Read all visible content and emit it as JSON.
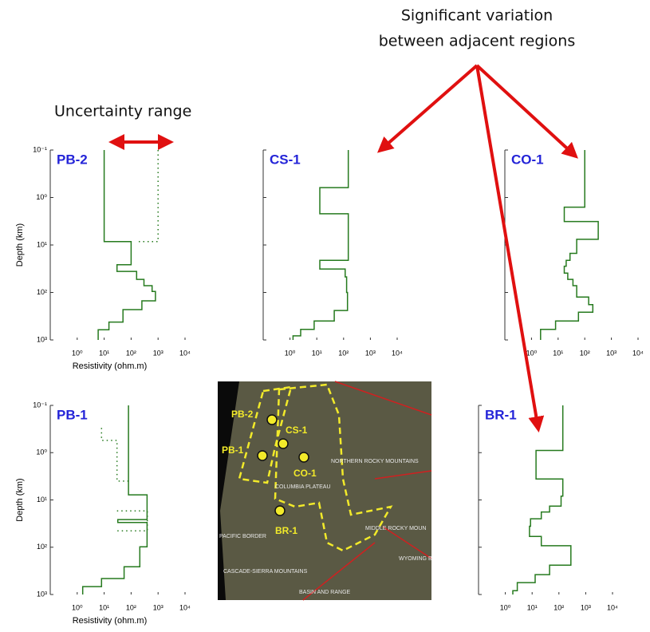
{
  "annotations": {
    "uncertainty": "Uncertainty range",
    "variation": [
      "Significant variation",
      "between adjacent regions"
    ]
  },
  "map": {
    "labels": [
      "PB-2",
      "CS-1",
      "PB-1",
      "CO-1",
      "BR-1",
      "NORTHERN ROCKY MOUNTAINS",
      "COLUMBIA PLATEAU",
      "PACIFIC BORDER",
      "MIDDLE ROCKY MOUN",
      "WYOMING B",
      "CASCADE-SIERRA MOUNTAINS",
      "BASIN AND RANGE"
    ]
  },
  "chart_data": [
    {
      "type": "line",
      "title": "PB-2",
      "xlabel": "Resistivity (ohm.m)",
      "ylabel": "Depth (km)",
      "xscale": "log",
      "yscale": "log",
      "yinvert": true,
      "ytick_labels": true,
      "xlim": [
        0.1,
        10000
      ],
      "ylim": [
        0.1,
        1000
      ],
      "xticks": [
        {
          "value": 1,
          "label": "10⁰"
        },
        {
          "value": 10,
          "label": "10¹"
        },
        {
          "value": 100,
          "label": "10²"
        },
        {
          "value": 1000,
          "label": "10³"
        },
        {
          "value": 10000,
          "label": "10⁴"
        }
      ],
      "yticks": [
        {
          "value": 0.1,
          "label": "10⁻¹"
        },
        {
          "value": 1,
          "label": "10⁰"
        },
        {
          "value": 10,
          "label": "10¹"
        },
        {
          "value": 100,
          "label": "10²"
        },
        {
          "value": 1000,
          "label": "10³"
        }
      ],
      "series": [
        {
          "color": "#267a1e",
          "style": "solid",
          "x": [
            10,
            10,
            100,
            100,
            30,
            30,
            160,
            160,
            300,
            300,
            600,
            600,
            800,
            800,
            250,
            250,
            50,
            50,
            15,
            15,
            6,
            6
          ],
          "values": [
            0.1,
            8.5,
            8.5,
            26,
            26,
            36,
            36,
            53,
            53,
            72,
            72,
            95,
            95,
            150,
            150,
            230,
            230,
            420,
            420,
            610,
            610,
            1000
          ]
        },
        {
          "color": "#267a1e",
          "style": "dotted",
          "x": [
            1000,
            1000,
            160
          ],
          "values": [
            0.1,
            8.5,
            8.5
          ]
        }
      ]
    },
    {
      "type": "line",
      "title": "CS-1",
      "xscale": "log",
      "yscale": "log",
      "yinvert": true,
      "ytick_labels": false,
      "xlim": [
        0.1,
        10000
      ],
      "ylim": [
        0.1,
        1000
      ],
      "xticks": [
        {
          "value": 1,
          "label": "10⁰"
        },
        {
          "value": 10,
          "label": "10¹"
        },
        {
          "value": 100,
          "label": "10²"
        },
        {
          "value": 1000,
          "label": "10³"
        },
        {
          "value": 10000,
          "label": "10⁴"
        }
      ],
      "yticks": [
        0.1,
        1,
        10,
        100,
        1000
      ],
      "series": [
        {
          "color": "#267a1e",
          "style": "solid",
          "x": [
            150,
            150,
            13,
            13,
            150,
            150,
            13,
            13,
            115,
            115,
            130,
            130,
            140,
            140,
            45,
            45,
            8,
            8,
            2.5,
            2.5,
            1.3,
            1.3
          ],
          "values": [
            0.1,
            0.62,
            0.62,
            2.2,
            2.2,
            21,
            21,
            32,
            32,
            47,
            47,
            100,
            100,
            240,
            240,
            400,
            400,
            600,
            600,
            820,
            820,
            1000
          ]
        }
      ]
    },
    {
      "type": "line",
      "title": "CO-1",
      "xscale": "log",
      "yscale": "log",
      "yinvert": true,
      "ytick_labels": false,
      "xlim": [
        0.1,
        10000
      ],
      "ylim": [
        0.1,
        1000
      ],
      "xticks": [
        {
          "value": 1,
          "label": "10⁰"
        },
        {
          "value": 10,
          "label": "10¹"
        },
        {
          "value": 100,
          "label": "10²"
        },
        {
          "value": 1000,
          "label": "10³"
        },
        {
          "value": 10000,
          "label": "10⁴"
        }
      ],
      "yticks": [
        0.1,
        1,
        10,
        100,
        1000
      ],
      "series": [
        {
          "color": "#267a1e",
          "style": "solid",
          "x": [
            100,
            100,
            17,
            17,
            320,
            320,
            50,
            50,
            28,
            28,
            20,
            20,
            17,
            17,
            23,
            23,
            36,
            36,
            50,
            50,
            140,
            140,
            200,
            200,
            58,
            58,
            8,
            8,
            2.2,
            2.2
          ],
          "values": [
            0.1,
            1.6,
            1.6,
            3.2,
            3.2,
            7.6,
            7.6,
            15,
            15,
            21,
            21,
            28,
            28,
            39,
            39,
            53,
            53,
            72,
            72,
            125,
            125,
            180,
            180,
            260,
            260,
            400,
            400,
            600,
            600,
            1000
          ]
        }
      ]
    },
    {
      "type": "line",
      "title": "PB-1",
      "xlabel": "Resistivity (ohm.m)",
      "ylabel": "Depth (km)",
      "xscale": "log",
      "yscale": "log",
      "yinvert": true,
      "ytick_labels": true,
      "xlim": [
        0.1,
        10000
      ],
      "ylim": [
        0.1,
        1000
      ],
      "xticks": [
        {
          "value": 1,
          "label": "10⁰"
        },
        {
          "value": 10,
          "label": "10¹"
        },
        {
          "value": 100,
          "label": "10²"
        },
        {
          "value": 1000,
          "label": "10³"
        },
        {
          "value": 10000,
          "label": "10⁴"
        }
      ],
      "yticks": [
        {
          "value": 0.1,
          "label": "10⁻¹"
        },
        {
          "value": 1,
          "label": "10⁰"
        },
        {
          "value": 10,
          "label": "10¹"
        },
        {
          "value": 100,
          "label": "10²"
        },
        {
          "value": 1000,
          "label": "10³"
        }
      ],
      "series": [
        {
          "color": "#267a1e",
          "style": "solid",
          "x": [
            80,
            80,
            390,
            390,
            32,
            32,
            390,
            390,
            210,
            210,
            55,
            55,
            8,
            8,
            1.6,
            1.6
          ],
          "values": [
            0.1,
            7.8,
            7.8,
            26,
            26,
            30,
            30,
            98,
            98,
            260,
            260,
            460,
            460,
            680,
            680,
            1000
          ]
        },
        {
          "color": "#267a1e",
          "style": "dotted",
          "x": [
            8,
            8,
            30,
            30,
            80
          ],
          "values": [
            0.3,
            0.55,
            0.55,
            4,
            4
          ]
        },
        {
          "color": "#267a1e",
          "style": "dotted",
          "x": [
            30,
            400,
            400,
            30
          ],
          "values": [
            17,
            17,
            45,
            45
          ]
        }
      ]
    },
    {
      "type": "line",
      "title": "BR-1",
      "xscale": "log",
      "yscale": "log",
      "yinvert": true,
      "ytick_labels": false,
      "xlim": [
        0.1,
        10000
      ],
      "ylim": [
        0.1,
        1000
      ],
      "xticks": [
        {
          "value": 1,
          "label": "10⁰"
        },
        {
          "value": 10,
          "label": "10¹"
        },
        {
          "value": 100,
          "label": "10²"
        },
        {
          "value": 1000,
          "label": "10³"
        },
        {
          "value": 10000,
          "label": "10⁴"
        }
      ],
      "yticks": [
        0.1,
        1,
        10,
        100,
        1000
      ],
      "series": [
        {
          "color": "#267a1e",
          "style": "solid",
          "x": [
            140,
            140,
            14,
            14,
            140,
            140,
            120,
            120,
            45,
            45,
            22,
            22,
            8.7,
            8.7,
            8,
            8,
            22,
            22,
            280,
            280,
            45,
            45,
            13,
            13,
            2.8,
            2.8,
            1.9,
            1.9
          ],
          "values": [
            0.1,
            0.9,
            0.9,
            3.6,
            3.6,
            8.3,
            8.3,
            13.5,
            13.5,
            18,
            18,
            25,
            25,
            36,
            36,
            59,
            59,
            93,
            93,
            240,
            240,
            380,
            380,
            560,
            560,
            830,
            830,
            1000
          ]
        }
      ]
    }
  ]
}
